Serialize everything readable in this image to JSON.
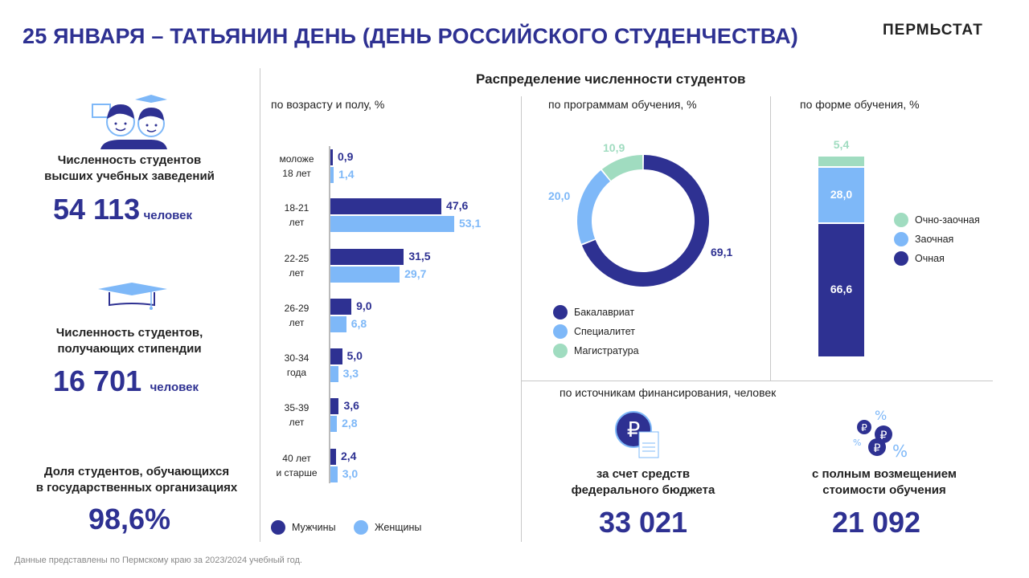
{
  "header": {
    "title": "25 ЯНВАРЯ – ТАТЬЯНИН ДЕНЬ (ДЕНЬ РОССИЙСКОГО СТУДЕНЧЕСТВА)",
    "brand": "ПЕРМЬСТАТ"
  },
  "left": {
    "students": {
      "label1": "Численность студентов",
      "label2": "высших учебных заведений",
      "value": "54 113",
      "unit": "человек"
    },
    "stipend": {
      "label1": "Численность студентов,",
      "label2": "получающих стипендии",
      "value": "16 701",
      "unit": "человек"
    },
    "state": {
      "label1": "Доля студентов, обучающихся",
      "label2": "в государственных организациях",
      "value": "98,6%"
    }
  },
  "section_title": "Распределение численности студентов",
  "colors": {
    "dark": "#2e3192",
    "light": "#7eb8f8",
    "green": "#a0dcc0"
  },
  "chart_data": [
    {
      "type": "bar",
      "title": "по возрасту и полу, %",
      "categories": [
        [
          "моложе",
          "18 лет"
        ],
        [
          "18-21",
          "лет"
        ],
        [
          "22-25",
          "лет"
        ],
        [
          "26-29",
          "лет"
        ],
        [
          "30-34",
          "года"
        ],
        [
          "35-39",
          "лет"
        ],
        [
          "40 лет",
          "и старше"
        ]
      ],
      "series": [
        {
          "name": "Мужчины",
          "values": [
            0.9,
            47.6,
            31.5,
            9.0,
            5.0,
            3.6,
            2.4
          ],
          "labels": [
            "0,9",
            "47,6",
            "31,5",
            "9,0",
            "5,0",
            "3,6",
            "2,4"
          ]
        },
        {
          "name": "Женщины",
          "values": [
            1.4,
            53.1,
            29.7,
            6.8,
            3.3,
            2.8,
            3.0
          ],
          "labels": [
            "1,4",
            "53,1",
            "29,7",
            "6,8",
            "3,3",
            "2,8",
            "3,0"
          ]
        }
      ]
    },
    {
      "type": "pie",
      "title": "по программам обучения, %",
      "categories": [
        "Бакалавриат",
        "Специалитет",
        "Магистратура"
      ],
      "values": [
        69.1,
        20.0,
        10.9
      ],
      "labels": [
        "69,1",
        "20,0",
        "10,9"
      ]
    },
    {
      "type": "bar",
      "title": "по форме обучения, %",
      "categories": [
        "Очная",
        "Заочная",
        "Очно-заочная"
      ],
      "values": [
        66.6,
        28.0,
        5.4
      ],
      "labels": [
        "66,6",
        "28,0",
        "5,4"
      ]
    }
  ],
  "finance": {
    "title": "по источникам финансирования, человек",
    "federal": {
      "label1": "за счет средств",
      "label2": "федерального бюджета",
      "value": "33 021"
    },
    "paid": {
      "label1": "с полным возмещением",
      "label2": "стоимости обучения",
      "value": "21 092"
    }
  },
  "footer": "Данные представлены по Пермскому краю за 2023/2024 учебный год."
}
